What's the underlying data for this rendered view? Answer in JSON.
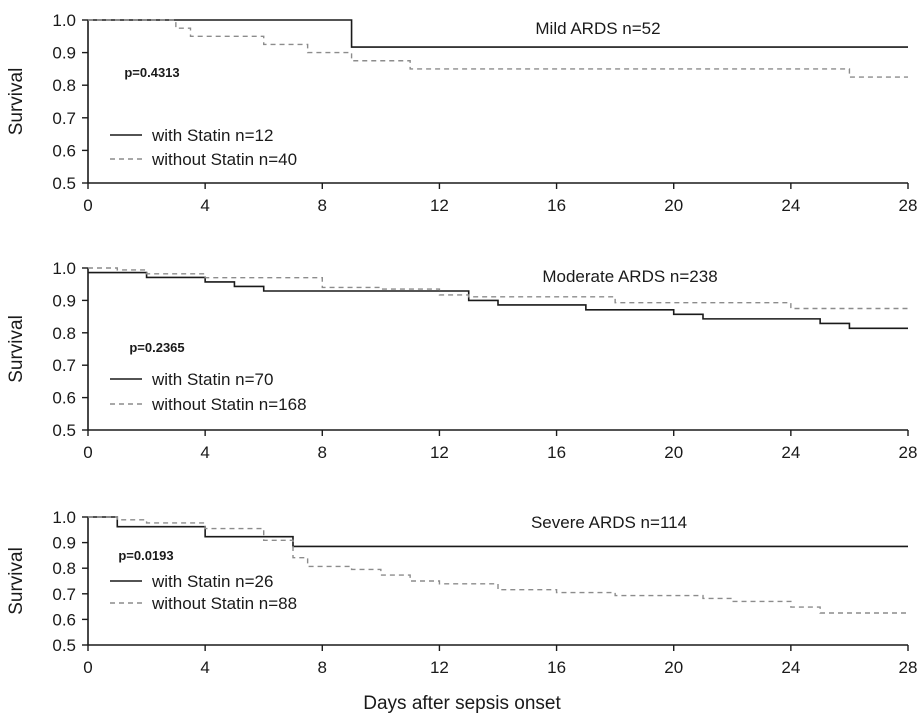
{
  "chart_data": [
    {
      "type": "line",
      "title": "Mild ARDS n=52",
      "pvalue": "p=0.4313",
      "ylabel": "Survival",
      "xlabel": "",
      "xlim": [
        0,
        28
      ],
      "ylim": [
        0.5,
        1.0
      ],
      "xticks": [
        0,
        4,
        8,
        12,
        16,
        20,
        24,
        28
      ],
      "yticks": [
        "0.5",
        "0.6",
        "0.7",
        "0.8",
        "0.9",
        "1.0"
      ],
      "legend_position": "left",
      "series": [
        {
          "name": "with Statin n=12",
          "style": "solid",
          "color": "#1a1a1a",
          "steps": [
            [
              0,
              1.0
            ],
            [
              9,
              0.917
            ],
            [
              28,
              0.917
            ]
          ]
        },
        {
          "name": "without Statin n=40",
          "style": "dashed",
          "color": "#8c8c8c",
          "steps": [
            [
              0,
              1.0
            ],
            [
              3,
              0.975
            ],
            [
              3.5,
              0.95
            ],
            [
              6,
              0.925
            ],
            [
              7.5,
              0.9
            ],
            [
              9,
              0.875
            ],
            [
              11,
              0.85
            ],
            [
              26,
              0.825
            ],
            [
              28,
              0.825
            ]
          ]
        }
      ]
    },
    {
      "type": "line",
      "title": "Moderate ARDS n=238",
      "pvalue": "p=0.2365",
      "ylabel": "Survival",
      "xlabel": "",
      "xlim": [
        0,
        28
      ],
      "ylim": [
        0.5,
        1.0
      ],
      "xticks": [
        0,
        4,
        8,
        12,
        16,
        20,
        24,
        28
      ],
      "yticks": [
        "0.5",
        "0.6",
        "0.7",
        "0.8",
        "0.9",
        "1.0"
      ],
      "legend_position": "left",
      "series": [
        {
          "name": "with Statin n=70",
          "style": "solid",
          "color": "#1a1a1a",
          "steps": [
            [
              0,
              0.986
            ],
            [
              2,
              0.971
            ],
            [
              4,
              0.957
            ],
            [
              5,
              0.943
            ],
            [
              6,
              0.929
            ],
            [
              13,
              0.9
            ],
            [
              14,
              0.886
            ],
            [
              17,
              0.871
            ],
            [
              20,
              0.857
            ],
            [
              21,
              0.843
            ],
            [
              25,
              0.829
            ],
            [
              26,
              0.814
            ],
            [
              28,
              0.814
            ]
          ]
        },
        {
          "name": "without Statin n=168",
          "style": "dashed",
          "color": "#8c8c8c",
          "steps": [
            [
              0,
              1.0
            ],
            [
              1,
              0.994
            ],
            [
              2,
              0.982
            ],
            [
              4,
              0.97
            ],
            [
              8,
              0.94
            ],
            [
              10,
              0.935
            ],
            [
              12,
              0.917
            ],
            [
              13,
              0.911
            ],
            [
              18,
              0.893
            ],
            [
              24,
              0.875
            ],
            [
              28,
              0.875
            ]
          ]
        }
      ]
    },
    {
      "type": "line",
      "title": "Severe ARDS n=114",
      "pvalue": "p=0.0193",
      "ylabel": "Survival",
      "xlabel": "Days after sepsis onset",
      "xlim": [
        0,
        28
      ],
      "ylim": [
        0.5,
        1.0
      ],
      "xticks": [
        0,
        4,
        8,
        12,
        16,
        20,
        24,
        28
      ],
      "yticks": [
        "0.5",
        "0.6",
        "0.7",
        "0.8",
        "0.9",
        "1.0"
      ],
      "legend_position": "left",
      "series": [
        {
          "name": "with Statin n=26",
          "style": "solid",
          "color": "#1a1a1a",
          "steps": [
            [
              0,
              1.0
            ],
            [
              1,
              0.962
            ],
            [
              4,
              0.923
            ],
            [
              7,
              0.885
            ],
            [
              28,
              0.885
            ]
          ]
        },
        {
          "name": "without Statin n=88",
          "style": "dashed",
          "color": "#8c8c8c",
          "steps": [
            [
              0,
              1.0
            ],
            [
              1,
              0.989
            ],
            [
              2,
              0.977
            ],
            [
              4,
              0.955
            ],
            [
              6,
              0.909
            ],
            [
              7,
              0.841
            ],
            [
              7.5,
              0.807
            ],
            [
              9,
              0.795
            ],
            [
              10,
              0.773
            ],
            [
              11,
              0.75
            ],
            [
              12,
              0.739
            ],
            [
              14,
              0.716
            ],
            [
              16,
              0.705
            ],
            [
              18,
              0.693
            ],
            [
              21,
              0.682
            ],
            [
              22,
              0.67
            ],
            [
              24,
              0.648
            ],
            [
              25,
              0.625
            ],
            [
              28,
              0.625
            ]
          ]
        }
      ]
    }
  ],
  "shared_xlabel": "Days after sepsis onset"
}
